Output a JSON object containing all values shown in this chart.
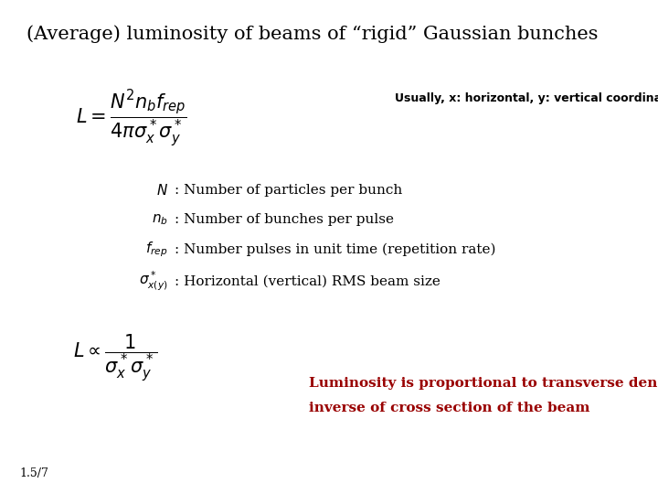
{
  "background_color": "#ffffff",
  "title": "(Average) luminosity of beams of “rigid” Gaussian bunches",
  "title_fontsize": 15,
  "title_color": "#000000",
  "usually_text": "Usually, x: horizontal, y: vertical coordinate",
  "usually_fontsize": 9,
  "usually_color": "#000000",
  "formula_main": "$L = \\dfrac{N^2 n_b f_{rep}}{4\\pi\\sigma_x^*\\sigma_y^*}$",
  "formula_main_fontsize": 15,
  "line1_label": "$N$",
  "line1_text": ": Number of particles per bunch",
  "line2_label": "$n_b$",
  "line2_text": ": Number of bunches per pulse",
  "line3_label": "$f_{rep}$",
  "line3_text": ": Number pulses in unit time (repetition rate)",
  "line4_label": "$\\sigma^*_{x(y)}$",
  "line4_text": ": Horizontal (vertical) RMS beam size",
  "formula2": "$L \\propto \\dfrac{1}{\\sigma_x^*\\sigma_y^*}$",
  "formula2_fontsize": 15,
  "red_text_line1": "Luminosity is proportional to transverse density,",
  "red_text_line2": "inverse of cross section of the beam",
  "red_color": "#990000",
  "red_fontsize": 11,
  "footnote": "1.5/7",
  "footnote_fontsize": 9,
  "label_fontsize": 11,
  "desc_fontsize": 11
}
